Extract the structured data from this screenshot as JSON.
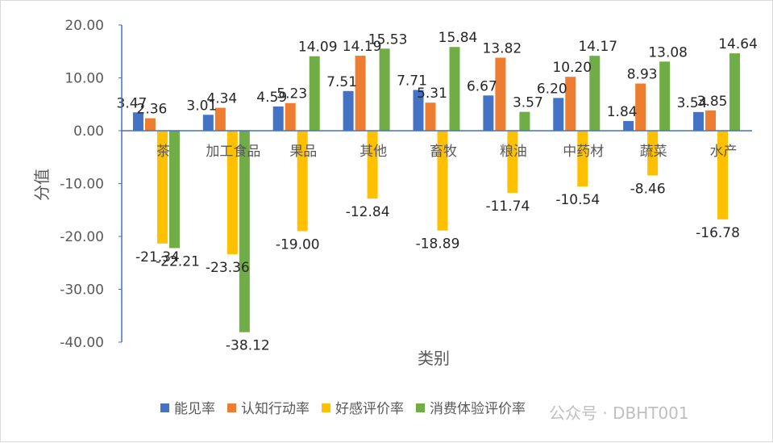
{
  "chart_data": {
    "type": "bar",
    "categories": [
      "茶",
      "加工食品",
      "果品",
      "其他",
      "畜牧",
      "粮油",
      "中药材",
      "蔬菜",
      "水产"
    ],
    "series": [
      {
        "name": "能见率",
        "color": "#4472C4",
        "values": [
          3.47,
          3.01,
          4.59,
          7.51,
          7.71,
          6.67,
          6.2,
          1.84,
          3.54
        ]
      },
      {
        "name": "认知行动率",
        "color": "#ED7D31",
        "values": [
          2.36,
          4.34,
          5.23,
          14.19,
          5.31,
          13.82,
          10.2,
          8.93,
          3.85
        ]
      },
      {
        "name": "好感评价率",
        "color": "#FFC000",
        "values": [
          -21.34,
          -23.36,
          -19.0,
          -12.84,
          -18.89,
          -11.74,
          -10.54,
          -8.46,
          -16.78
        ]
      },
      {
        "name": "消费体验评价率",
        "color": "#70AD47",
        "values": [
          -22.21,
          -38.12,
          14.09,
          15.53,
          15.84,
          3.57,
          14.17,
          13.08,
          14.64
        ]
      }
    ],
    "ylim": [
      -40,
      20
    ],
    "yticks": [
      "20.00",
      "10.00",
      "0.00",
      "-10.00",
      "-20.00",
      "-30.00",
      "-40.00"
    ],
    "xlabel": "类别",
    "ylabel": "分值",
    "legend_position": "bottom",
    "grid": false
  },
  "watermark": "公众号 · DBHT001"
}
